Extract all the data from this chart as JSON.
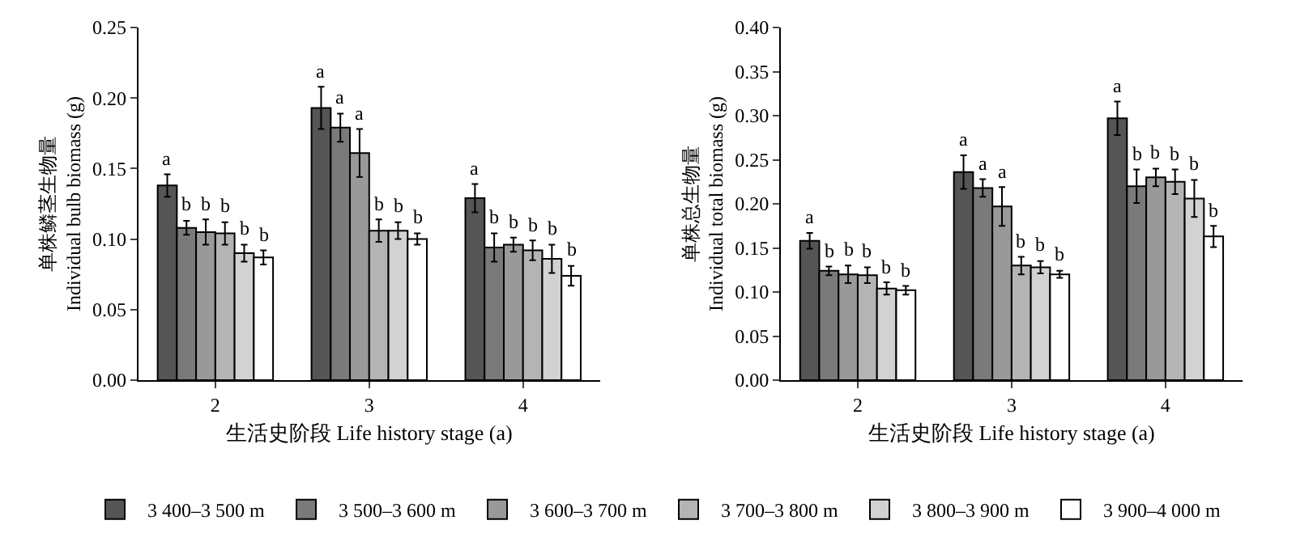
{
  "chart_data": [
    {
      "type": "bar",
      "categories": [
        "2",
        "3",
        "4"
      ],
      "xlabel": "生活史阶段 Life history stage (a)",
      "ylabel": "单株鳞茎生物量\nIndividual bulb biomass (g)",
      "ylim": [
        0,
        0.25
      ],
      "yticks": [
        {
          "value": 0,
          "label": "0.00"
        },
        {
          "value": 0.05,
          "label": "0.05"
        },
        {
          "value": 0.1,
          "label": "0.10"
        },
        {
          "value": 0.15,
          "label": "0.15"
        },
        {
          "value": 0.2,
          "label": "0.20"
        },
        {
          "value": 0.25,
          "label": "0.25"
        }
      ],
      "legend": "bottom",
      "series": [
        {
          "name": "3 400–3 500 m",
          "color": "#555555",
          "values": [
            0.138,
            0.193,
            0.129
          ],
          "errors": [
            0.008,
            0.015,
            0.01
          ],
          "value_labels": [
            "a",
            "a",
            "a"
          ]
        },
        {
          "name": "3 500–3 600 m",
          "color": "#7a7a7a",
          "values": [
            0.108,
            0.179,
            0.094
          ],
          "errors": [
            0.005,
            0.01,
            0.01
          ],
          "value_labels": [
            "b",
            "a",
            "b"
          ]
        },
        {
          "name": "3 600–3 700 m",
          "color": "#999999",
          "values": [
            0.105,
            0.161,
            0.096
          ],
          "errors": [
            0.009,
            0.017,
            0.005
          ],
          "value_labels": [
            "b",
            "a",
            "b"
          ]
        },
        {
          "name": "3 700–3 800 m",
          "color": "#b4b4b4",
          "values": [
            0.104,
            0.106,
            0.092
          ],
          "errors": [
            0.008,
            0.008,
            0.007
          ],
          "value_labels": [
            "b",
            "b",
            "b"
          ]
        },
        {
          "name": "3 800–3 900 m",
          "color": "#d2d2d2",
          "values": [
            0.09,
            0.106,
            0.086
          ],
          "errors": [
            0.006,
            0.006,
            0.01
          ],
          "value_labels": [
            "b",
            "b",
            "b"
          ]
        },
        {
          "name": "3 900–4 000 m",
          "color": "#ffffff",
          "values": [
            0.087,
            0.1,
            0.074
          ],
          "errors": [
            0.005,
            0.004,
            0.007
          ],
          "value_labels": [
            "b",
            "b",
            "b"
          ]
        }
      ]
    },
    {
      "type": "bar",
      "categories": [
        "2",
        "3",
        "4"
      ],
      "xlabel": "生活史阶段 Life history stage (a)",
      "ylabel": "单株总生物量\nIndividual total biomass (g)",
      "ylim": [
        0,
        0.4
      ],
      "yticks": [
        {
          "value": 0,
          "label": "0.00"
        },
        {
          "value": 0.05,
          "label": "0.05"
        },
        {
          "value": 0.1,
          "label": "0.10"
        },
        {
          "value": 0.15,
          "label": "0.15"
        },
        {
          "value": 0.2,
          "label": "0.20"
        },
        {
          "value": 0.25,
          "label": "0.25"
        },
        {
          "value": 0.3,
          "label": "0.30"
        },
        {
          "value": 0.35,
          "label": "0.35"
        },
        {
          "value": 0.4,
          "label": "0.40"
        }
      ],
      "series": [
        {
          "color": "#555555",
          "values": [
            0.158,
            0.236,
            0.297
          ],
          "errors": [
            0.009,
            0.019,
            0.019
          ],
          "value_labels": [
            "a",
            "a",
            "a"
          ]
        },
        {
          "color": "#7a7a7a",
          "values": [
            0.124,
            0.218,
            0.22
          ],
          "errors": [
            0.005,
            0.01,
            0.019
          ],
          "value_labels": [
            "b",
            "a",
            "b"
          ]
        },
        {
          "color": "#999999",
          "values": [
            0.12,
            0.197,
            0.23
          ],
          "errors": [
            0.01,
            0.022,
            0.01
          ],
          "value_labels": [
            "b",
            "a",
            "b"
          ]
        },
        {
          "color": "#b4b4b4",
          "values": [
            0.119,
            0.13,
            0.225
          ],
          "errors": [
            0.009,
            0.01,
            0.014
          ],
          "value_labels": [
            "b",
            "b",
            "b"
          ]
        },
        {
          "color": "#d2d2d2",
          "values": [
            0.104,
            0.128,
            0.206
          ],
          "errors": [
            0.007,
            0.007,
            0.021
          ],
          "value_labels": [
            "b",
            "b",
            "b"
          ]
        },
        {
          "color": "#ffffff",
          "values": [
            0.102,
            0.12,
            0.163
          ],
          "errors": [
            0.005,
            0.004,
            0.012
          ],
          "value_labels": [
            "b",
            "b",
            "b"
          ]
        }
      ]
    }
  ]
}
